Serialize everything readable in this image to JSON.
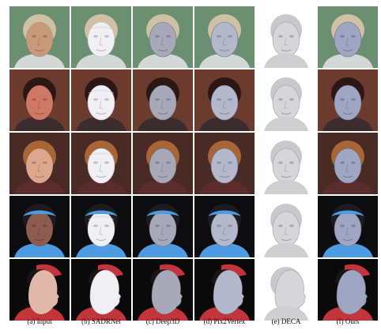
{
  "figure": {
    "captions": [
      "(a) Input",
      "(b) SADRNet",
      "(c) Deep3D",
      "(d) Pix2Vertex",
      "(e) DECA",
      "(f) Ours"
    ],
    "rows": [
      {
        "bg": "#6a8f71",
        "skin": "#c89a7a",
        "hair": "#cfc1a4",
        "accent": "#d2d8d6",
        "mesh": "#e8e8ee",
        "view": "frontal"
      },
      {
        "bg": "#6b3b2d",
        "skin": "#d07866",
        "hair": "#2b1714",
        "accent": "#3d2c2e",
        "mesh": "#e5e5ea",
        "view": "frontal"
      },
      {
        "bg": "#4a2a24",
        "skin": "#dca78d",
        "hair": "#a86536",
        "accent": "#5b2c2c",
        "mesh": "#eceef2",
        "view": "frontal"
      },
      {
        "bg": "#0d0d10",
        "skin": "#8d5c4e",
        "hair": "#1c1c20",
        "accent": "#4c9be3",
        "mesh": "#e7e7ec",
        "view": "frontal"
      },
      {
        "bg": "#0a0a0a",
        "skin": "#e0b8a9",
        "hair": "#1a1414",
        "accent": "#c3353a",
        "mesh": "#dcdce2",
        "view": "profile"
      }
    ]
  }
}
